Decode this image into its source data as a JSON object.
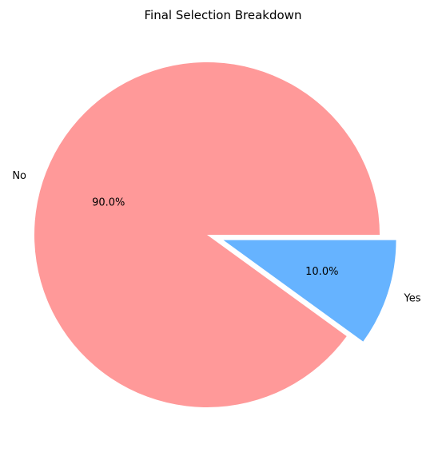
{
  "chart_data": {
    "type": "pie",
    "title": "Final Selection Breakdown",
    "slices": [
      {
        "label": "No",
        "value": 90.0,
        "pct_label": "90.0%",
        "color": "#ff9999",
        "explode": 0.0
      },
      {
        "label": "Yes",
        "value": 10.0,
        "pct_label": "10.0%",
        "color": "#66b3ff",
        "explode": 0.1
      }
    ],
    "start_angle_deg": 0,
    "direction": "counterclockwise"
  }
}
